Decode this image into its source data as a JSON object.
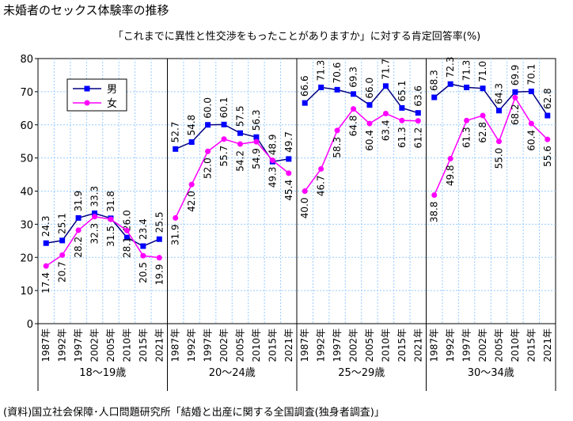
{
  "chart_data": {
    "type": "line",
    "title": "未婚者のセックス体験率の推移",
    "subtitle": "「これまでに異性と性交渉をもったことがありますか」に対する肯定回答率(%)",
    "source": "(資料)国立社会保障･人口問題研究所「結婚と出産に関する全国調査(独身者調査)」",
    "ylim": [
      0,
      80
    ],
    "yticks": [
      "0",
      "10",
      "20",
      "30",
      "40",
      "50",
      "60",
      "70",
      "80"
    ],
    "grid": true,
    "legend_position": "top-left",
    "years": [
      "1987年",
      "1992年",
      "1997年",
      "2002年",
      "2005年",
      "2010年",
      "2015年",
      "2021年"
    ],
    "groups": [
      {
        "label": "18～19歳",
        "male": [
          24.3,
          25.1,
          31.9,
          33.3,
          31.8,
          26.0,
          23.4,
          25.5
        ],
        "female": [
          17.4,
          20.7,
          28.2,
          32.3,
          31.5,
          28.1,
          20.5,
          19.9
        ]
      },
      {
        "label": "20～24歳",
        "male": [
          52.7,
          54.8,
          60.0,
          60.1,
          57.5,
          56.3,
          48.9,
          49.7
        ],
        "female": [
          31.9,
          42.0,
          52.0,
          55.7,
          54.2,
          54.9,
          49.3,
          45.4
        ]
      },
      {
        "label": "25～29歳",
        "male": [
          66.6,
          71.3,
          70.6,
          69.3,
          66.0,
          71.7,
          65.1,
          63.6
        ],
        "female": [
          40.0,
          46.7,
          58.3,
          64.8,
          60.4,
          63.4,
          61.3,
          61.2
        ]
      },
      {
        "label": "30～34歳",
        "male": [
          68.3,
          72.3,
          71.3,
          71.0,
          64.3,
          69.9,
          70.1,
          62.8
        ],
        "female": [
          38.8,
          49.8,
          61.3,
          62.8,
          55.0,
          68.2,
          60.4,
          55.6
        ]
      }
    ],
    "series": [
      {
        "name": "男",
        "key": "male",
        "color": "#0000ff",
        "marker": "square"
      },
      {
        "name": "女",
        "key": "female",
        "color": "#ff00ff",
        "marker": "circle"
      }
    ]
  }
}
